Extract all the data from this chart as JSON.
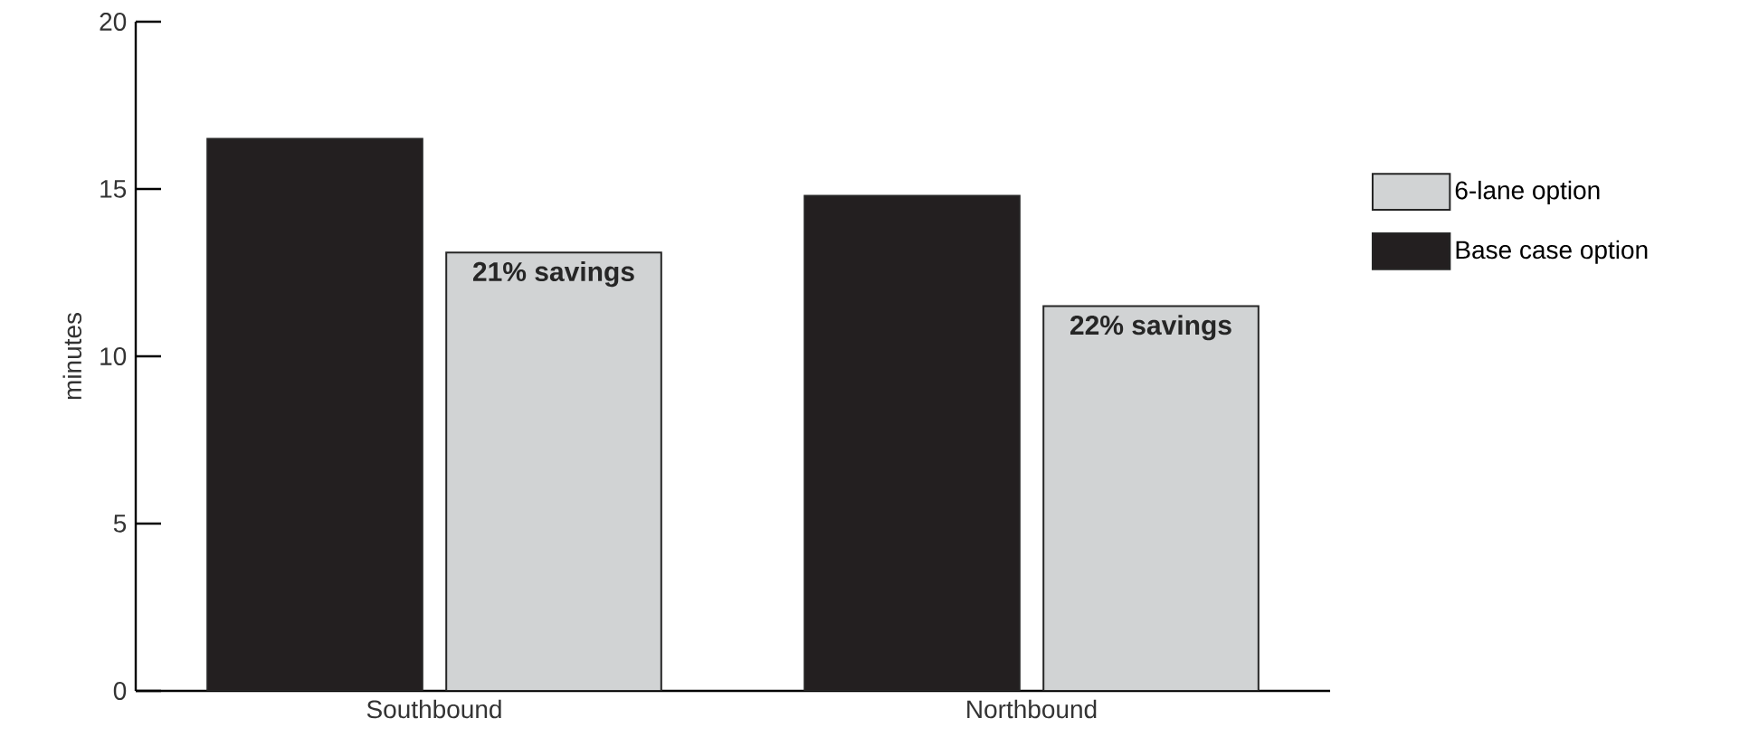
{
  "chart_data": {
    "type": "bar",
    "ylabel": "minutes",
    "categories": [
      "Southbound",
      "Northbound"
    ],
    "series": [
      {
        "name": "Base case option",
        "color": "#231f20",
        "values": [
          16.5,
          14.8
        ]
      },
      {
        "name": "6-lane option",
        "color": "#d1d3d4",
        "values": [
          13.1,
          11.5
        ]
      }
    ],
    "ylim": [
      0,
      20
    ],
    "yticks": [
      0,
      5,
      10,
      15,
      20
    ],
    "annotations": [
      "21% savings",
      "22% savings"
    ],
    "legend": "right",
    "grid": false
  }
}
